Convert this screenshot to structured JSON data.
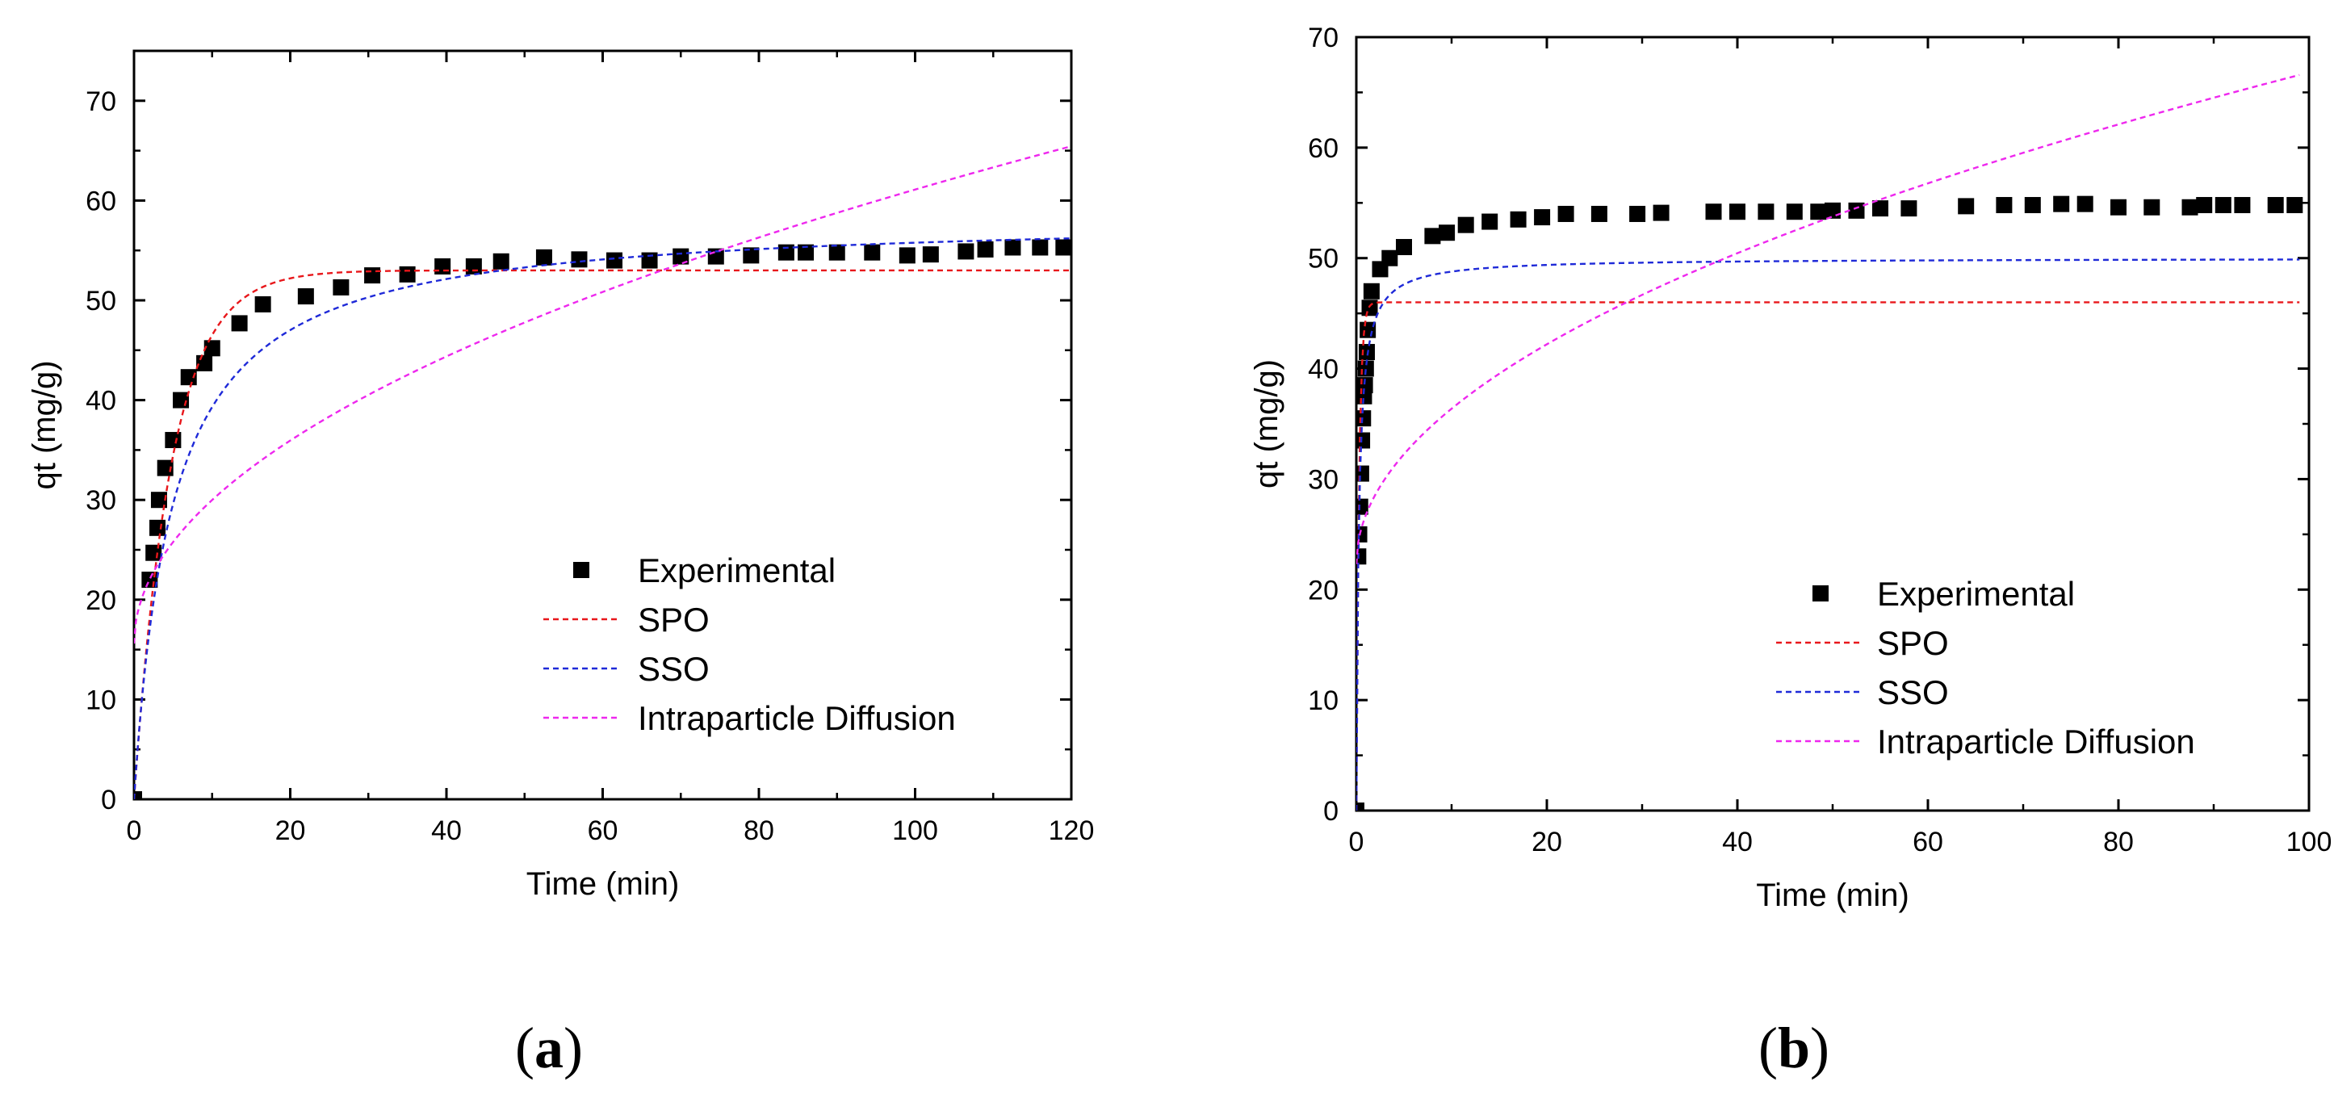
{
  "chart_data": [
    {
      "panel": "a",
      "panel_label": "a",
      "type": "scatter",
      "xlabel": "Time (min)",
      "ylabel": "qt (mg/g)",
      "xlim": [
        0,
        120
      ],
      "ylim": [
        0,
        75
      ],
      "xticks": [
        0,
        20,
        40,
        60,
        80,
        100,
        120
      ],
      "yticks": [
        0,
        10,
        20,
        30,
        40,
        50,
        60,
        70
      ],
      "legend_position": "center-left",
      "series": [
        {
          "name": "Experimental",
          "kind": "markers",
          "color": "#000000",
          "points": [
            [
              0,
              0
            ],
            [
              2,
              22
            ],
            [
              2.5,
              24.7
            ],
            [
              3,
              27.2
            ],
            [
              3.2,
              30
            ],
            [
              4,
              33.2
            ],
            [
              5,
              36
            ],
            [
              6,
              40
            ],
            [
              7,
              42.3
            ],
            [
              9,
              43.7
            ],
            [
              10,
              45.2
            ],
            [
              13.5,
              47.7
            ],
            [
              16.5,
              49.6
            ],
            [
              22,
              50.4
            ],
            [
              26.5,
              51.3
            ],
            [
              30.5,
              52.5
            ],
            [
              35,
              52.6
            ],
            [
              39.5,
              53.4
            ],
            [
              43.5,
              53.4
            ],
            [
              47,
              53.9
            ],
            [
              52.5,
              54.3
            ],
            [
              57,
              54.1
            ],
            [
              61.5,
              54
            ],
            [
              66,
              54
            ],
            [
              70,
              54.4
            ],
            [
              74.5,
              54.4
            ],
            [
              79,
              54.5
            ],
            [
              83.5,
              54.8
            ],
            [
              86,
              54.8
            ],
            [
              90,
              54.8
            ],
            [
              94.5,
              54.8
            ],
            [
              99,
              54.5
            ],
            [
              102,
              54.6
            ],
            [
              106.5,
              54.9
            ],
            [
              109,
              55.1
            ],
            [
              112.5,
              55.3
            ],
            [
              116,
              55.3
            ],
            [
              119,
              55.3
            ]
          ]
        },
        {
          "name": "SPO",
          "kind": "dashed",
          "color": "#e8171b",
          "model": {
            "form": "pfo",
            "qe": 53,
            "k": 0.21
          },
          "domain": [
            0,
            120
          ]
        },
        {
          "name": "SSO",
          "kind": "dashed",
          "color": "#1f2ad8",
          "model": {
            "form": "pso",
            "qe": 58.5,
            "k": 0.0035
          },
          "domain": [
            0,
            120
          ]
        },
        {
          "name": "Intraparticle Diffusion",
          "kind": "dashed",
          "color": "#ee28ee",
          "model": {
            "form": "ipd",
            "k": 4.55,
            "c": 15.6
          },
          "domain": [
            0,
            120
          ]
        }
      ]
    },
    {
      "panel": "b",
      "panel_label": "b",
      "type": "scatter",
      "xlabel": "Time (min)",
      "ylabel": "qt (mg/g)",
      "xlim": [
        0,
        100
      ],
      "ylim": [
        0,
        70
      ],
      "xticks": [
        0,
        20,
        40,
        60,
        80,
        100
      ],
      "yticks": [
        0,
        10,
        20,
        30,
        40,
        50,
        60,
        70
      ],
      "legend_position": "center-right",
      "series": [
        {
          "name": "Experimental",
          "kind": "markers",
          "color": "#000000",
          "points": [
            [
              0,
              0
            ],
            [
              0.2,
              23
            ],
            [
              0.3,
              25
            ],
            [
              0.4,
              27.5
            ],
            [
              0.5,
              30.5
            ],
            [
              0.6,
              33.5
            ],
            [
              0.7,
              35.5
            ],
            [
              0.8,
              37.5
            ],
            [
              0.9,
              38.5
            ],
            [
              1,
              40
            ],
            [
              1.1,
              41.5
            ],
            [
              1.2,
              43.5
            ],
            [
              1.4,
              45.5
            ],
            [
              1.6,
              47
            ],
            [
              2.5,
              49
            ],
            [
              3.5,
              50
            ],
            [
              5,
              51
            ],
            [
              8,
              52
            ],
            [
              9.5,
              52.3
            ],
            [
              11.5,
              53
            ],
            [
              14,
              53.3
            ],
            [
              17,
              53.5
            ],
            [
              19.5,
              53.7
            ],
            [
              22,
              54
            ],
            [
              25.5,
              54
            ],
            [
              29.5,
              54
            ],
            [
              32,
              54.1
            ],
            [
              37.5,
              54.2
            ],
            [
              40,
              54.2
            ],
            [
              43,
              54.2
            ],
            [
              46,
              54.2
            ],
            [
              48.5,
              54.2
            ],
            [
              50,
              54.3
            ],
            [
              52.5,
              54.3
            ],
            [
              55,
              54.5
            ],
            [
              58,
              54.5
            ],
            [
              64,
              54.7
            ],
            [
              68,
              54.8
            ],
            [
              71,
              54.8
            ],
            [
              74,
              54.9
            ],
            [
              76.5,
              54.9
            ],
            [
              80,
              54.6
            ],
            [
              83.5,
              54.6
            ],
            [
              87.5,
              54.6
            ],
            [
              89,
              54.8
            ],
            [
              91,
              54.8
            ],
            [
              93,
              54.8
            ],
            [
              96.5,
              54.8
            ],
            [
              98.5,
              54.8
            ]
          ]
        },
        {
          "name": "SPO",
          "kind": "dashed",
          "color": "#e8171b",
          "model": {
            "form": "pfo",
            "qe": 46,
            "k": 3.5
          },
          "domain": [
            0,
            99
          ]
        },
        {
          "name": "SSO",
          "kind": "dashed",
          "color": "#1f2ad8",
          "model": {
            "form": "pso",
            "qe": 50,
            "k": 0.08
          },
          "domain": [
            0,
            99
          ]
        },
        {
          "name": "Intraparticle Diffusion",
          "kind": "dashed",
          "color": "#ee28ee",
          "model": {
            "form": "ipd",
            "k": 4.45,
            "c": 22.3
          },
          "domain": [
            0,
            99
          ]
        }
      ]
    }
  ]
}
